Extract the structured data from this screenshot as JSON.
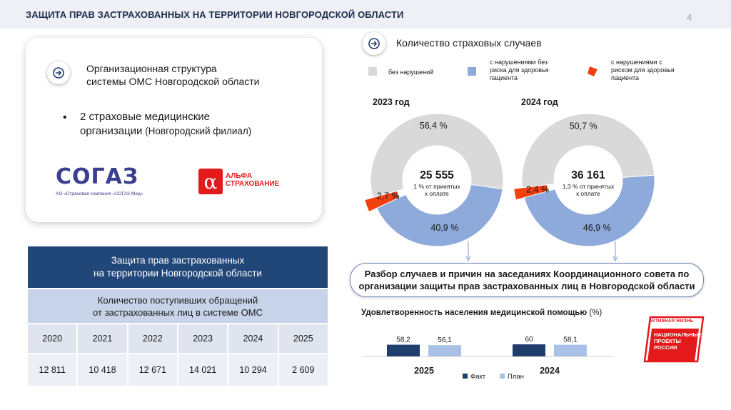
{
  "header": {
    "title": "ЗАЩИТА ПРАВ ЗАСТРАХОВАННЫХ НА ТЕРРИТОРИИ НОВГОРОДСКОЙ ОБЛАСТИ",
    "page_number": "4"
  },
  "org": {
    "title_line1": "Организационная структура",
    "title_line2": "системы ОМС Новгородской области",
    "bullet_bold_line1": "2 страховые медицинские",
    "bullet_bold_line2": "организации",
    "bullet_rest": " (Новгородский филиал)",
    "sogaz_logo": "СОГАЗ",
    "sogaz_caption": "АО «Страховая компания «СОГАЗ-Мед»",
    "alfa_glyph": "α",
    "alfa_line1": "АЛЬФА",
    "alfa_line2": "СТРАХОВАНИЕ"
  },
  "table": {
    "header_line1": "Защита прав застрахованных",
    "header_line2": "на территории Новгородской области",
    "sub_line1": "Количество поступивших обращений",
    "sub_line2": "от застрахованных лиц в системе ОМС",
    "years": [
      "2020",
      "2021",
      "2022",
      "2023",
      "2024",
      "2025"
    ],
    "values": [
      "12 811",
      "10 418",
      "12 671",
      "14 021",
      "10 294",
      "2 609"
    ]
  },
  "cases": {
    "title": "Количество страховых случаев",
    "legend": [
      {
        "label": "без нарушений",
        "color": "#d9d9d9"
      },
      {
        "label": "с нарушениями без риска для здоровья пациента",
        "color": "#8eaadb"
      },
      {
        "label": "с нарушениями с риском для здоровья пациента",
        "color": "#f2400f"
      }
    ],
    "legend_lines": [
      [
        "без нарушений"
      ],
      [
        "с нарушениями без",
        "риска для здоровья",
        "пациента"
      ],
      [
        "с нарушениями с",
        "риском для здоровья",
        "пациента"
      ]
    ]
  },
  "chart_data": [
    {
      "type": "pie",
      "title": "2023 год",
      "categories": [
        "без нарушений",
        "с нарушениями без риска для здоровья пациента",
        "с нарушениями с риском для здоровья пациента"
      ],
      "values": [
        56.4,
        40.9,
        2.7
      ],
      "labels": [
        "56,4 %",
        "40,9 %",
        "2,7 %"
      ],
      "center_value": "25 555",
      "center_note_line1": "1 % от принятых",
      "center_note_line2": "к оплате",
      "colors": [
        "#d9d9d9",
        "#8eaadb",
        "#f2400f"
      ]
    },
    {
      "type": "pie",
      "title": "2024 год",
      "categories": [
        "без нарушений",
        "с нарушениями без риска для здоровья пациента",
        "с нарушениями с риском для здоровья пациента"
      ],
      "values": [
        50.7,
        46.9,
        2.4
      ],
      "labels": [
        "50,7 %",
        "46,9 %",
        "2,4 %"
      ],
      "center_value": "36 161",
      "center_note_line1": "1,3 % от принятых",
      "center_note_line2": "к оплате",
      "colors": [
        "#d9d9d9",
        "#8eaadb",
        "#f2400f"
      ]
    },
    {
      "type": "bar",
      "title": "Удовлетворенность населения медицинской помощью",
      "title_unit": "(%)",
      "categories": [
        "2025",
        "2024"
      ],
      "series": [
        {
          "name": "Факт",
          "values": [
            58.2,
            60
          ],
          "labels": [
            "58,2",
            "60"
          ],
          "color": "#1f3d6d"
        },
        {
          "name": "План",
          "values": [
            56.1,
            58.1
          ],
          "labels": [
            "56,1",
            "58,1"
          ],
          "color": "#a9c1e6"
        }
      ],
      "ylim": [
        0,
        100
      ]
    }
  ],
  "callout": {
    "line1": "Разбор случаев и причин на заседаниях Координационного совета по",
    "line2": "организации защиты прав застрахованных лиц в Новгородской области"
  },
  "np_logo": {
    "line1": "АКТИВНАЯ ЖИЗНЬ",
    "line2": "НАЦИОНАЛЬНЫЕ",
    "line3": "ПРОЕКТЫ",
    "line4": "РОССИИ",
    "color": "#e4191c"
  }
}
